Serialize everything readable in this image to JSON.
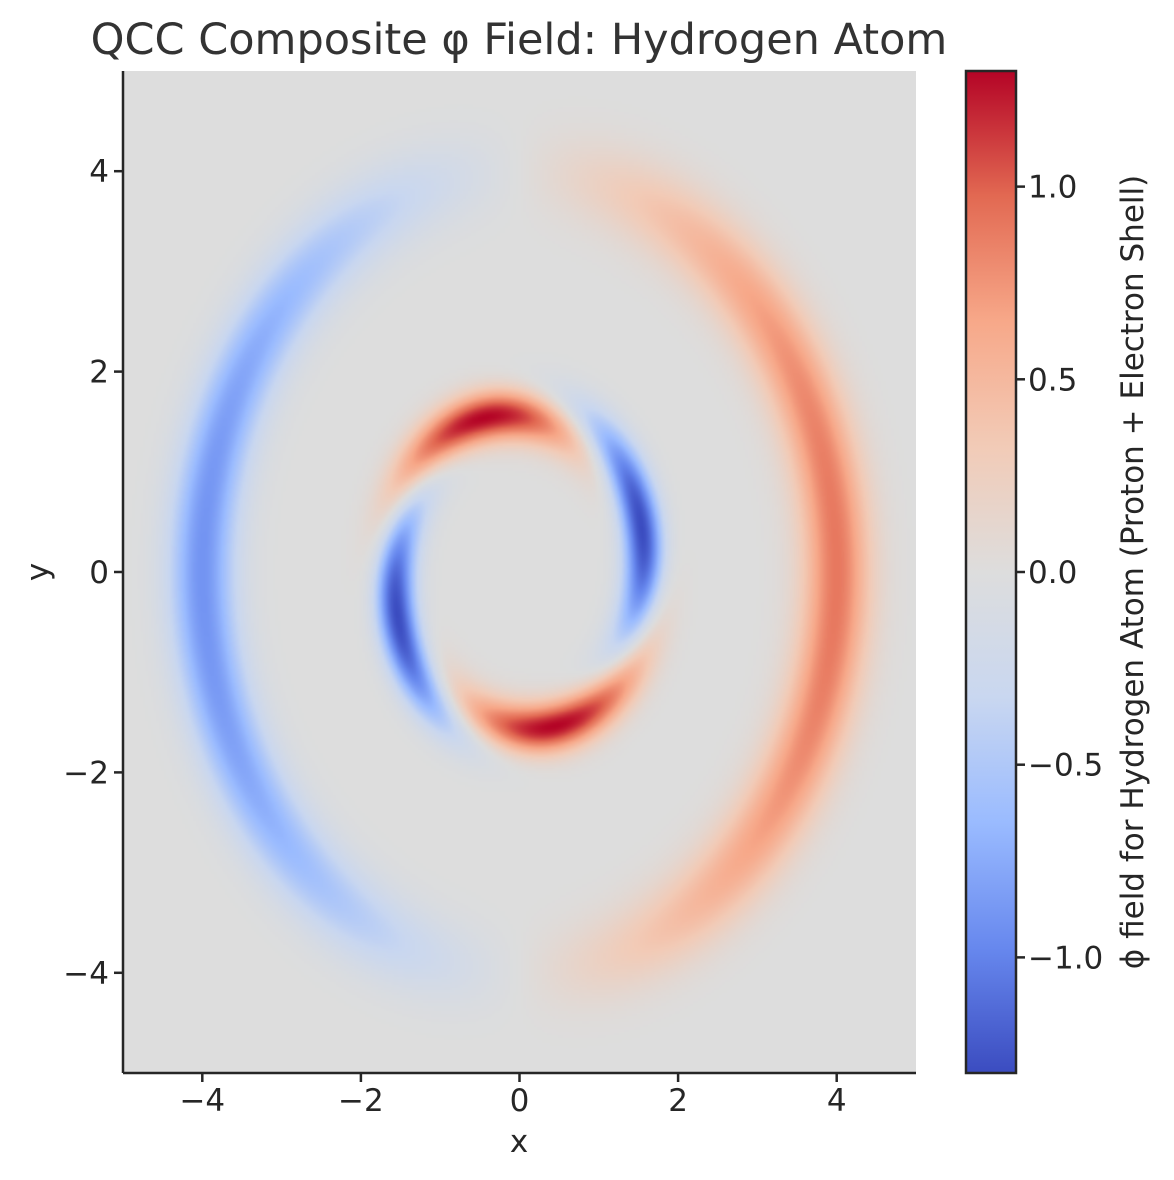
{
  "chart_data": {
    "type": "heatmap",
    "title": "QCC Composite φ Field: Hydrogen Atom",
    "xlabel": "x",
    "ylabel": "y",
    "xlim": [
      -5,
      5
    ],
    "ylim": [
      -5,
      5
    ],
    "xticks": [
      {
        "value": -4,
        "label": "−4"
      },
      {
        "value": -2,
        "label": "−2"
      },
      {
        "value": 0,
        "label": "0"
      },
      {
        "value": 2,
        "label": "2"
      },
      {
        "value": 4,
        "label": "4"
      }
    ],
    "yticks": [
      {
        "value": -4,
        "label": "−4"
      },
      {
        "value": -2,
        "label": "−2"
      },
      {
        "value": 0,
        "label": "0"
      },
      {
        "value": 2,
        "label": "2"
      },
      {
        "value": 4,
        "label": "4"
      }
    ],
    "colormap": "coolwarm",
    "colormap_stops": [
      "#3b4cc0",
      "#6788ee",
      "#9abbff",
      "#c9d7f0",
      "#dddddd",
      "#f2cbb7",
      "#f7a889",
      "#e26952",
      "#b40426"
    ],
    "grid": false,
    "colorbar": {
      "label": "ϕ field for Hydrogen Atom (Proton + Electron Shell)",
      "range": [
        -1.3,
        1.3
      ],
      "ticks": [
        {
          "value": -1.0,
          "label": "−1.0"
        },
        {
          "value": -0.5,
          "label": "−0.5"
        },
        {
          "value": 0.0,
          "label": "0.0"
        },
        {
          "value": 0.5,
          "label": "0.5"
        },
        {
          "value": 1.0,
          "label": "1.0"
        }
      ]
    },
    "features": [
      {
        "component": "electron shell",
        "shape": "ring",
        "radius": 4.0,
        "peak": 0.9,
        "pattern": "cos(theta)",
        "positive_side": "right",
        "negative_side": "left"
      },
      {
        "component": "proton core",
        "shape": "ring",
        "radius": 1.6,
        "peak": 1.3,
        "pattern": "four lobes rotating with radius",
        "lobes": [
          {
            "sign": "positive",
            "x": -1.4,
            "y": 0.7
          },
          {
            "sign": "negative",
            "x": 0.6,
            "y": 1.3
          },
          {
            "sign": "positive",
            "x": 1.4,
            "y": -0.7
          },
          {
            "sign": "negative",
            "x": -0.6,
            "y": -1.4
          }
        ]
      }
    ]
  }
}
